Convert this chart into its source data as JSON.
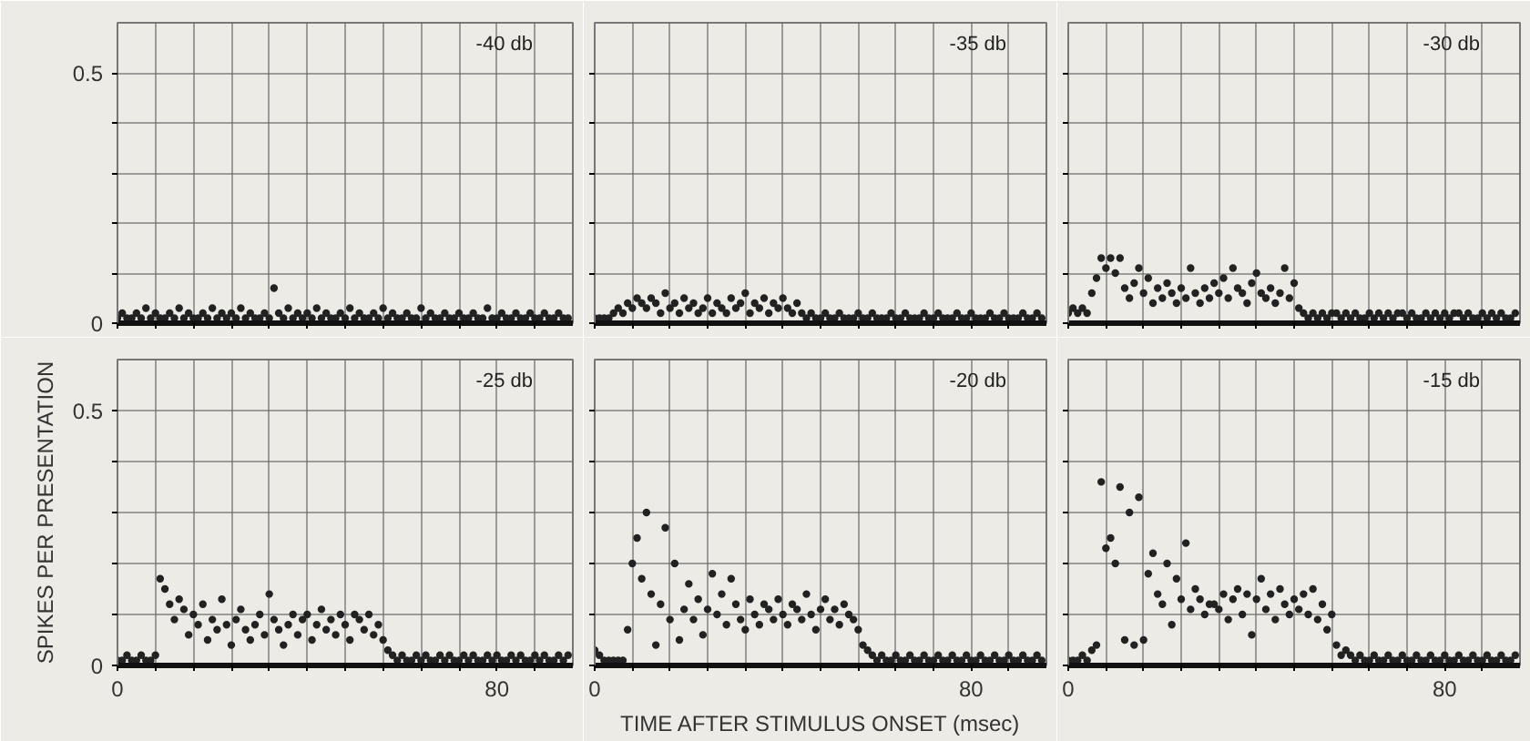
{
  "chart_data": [
    {
      "type": "scatter",
      "title": "-40 db",
      "xlim": [
        0,
        96
      ],
      "ylim": [
        0,
        0.6
      ],
      "xticks": [
        0,
        {
          "value": 8,
          "label": null
        },
        {
          "value": 16,
          "label": null
        },
        {
          "value": 24,
          "label": null
        },
        {
          "value": 32,
          "label": null
        },
        {
          "value": 40,
          "label": null
        },
        {
          "value": 48,
          "label": null
        },
        {
          "value": 56,
          "label": null
        },
        {
          "value": 64,
          "label": null
        },
        {
          "value": 72,
          "label": null
        },
        80,
        {
          "value": 88,
          "label": null
        }
      ],
      "yticks": [
        0,
        {
          "value": 0.1,
          "label": null
        },
        {
          "value": 0.2,
          "label": null
        },
        {
          "value": 0.3,
          "label": null
        },
        {
          "value": 0.4,
          "label": null
        },
        0.5
      ],
      "grid": true,
      "tick_labels": "y",
      "marker": "circle",
      "color": "#222222",
      "x": [
        0,
        1,
        2,
        3,
        4,
        5,
        6,
        7,
        8,
        9,
        10,
        11,
        12,
        13,
        14,
        15,
        16,
        17,
        18,
        19,
        20,
        21,
        22,
        23,
        24,
        25,
        26,
        27,
        28,
        29,
        30,
        31,
        32,
        33,
        34,
        35,
        36,
        37,
        38,
        39,
        40,
        41,
        42,
        43,
        44,
        45,
        46,
        47,
        48,
        49,
        50,
        51,
        52,
        53,
        54,
        55,
        56,
        57,
        58,
        59,
        60,
        61,
        62,
        63,
        64,
        65,
        66,
        67,
        68,
        69,
        70,
        71,
        72,
        73,
        74,
        75,
        76,
        77,
        78,
        79,
        80,
        81,
        82,
        83,
        84,
        85,
        86,
        87,
        88,
        89,
        90,
        91,
        92,
        93,
        94,
        95
      ],
      "values": [
        0.01,
        0.02,
        0.01,
        0.01,
        0.02,
        0.01,
        0.03,
        0.01,
        0.02,
        0.01,
        0.01,
        0.02,
        0.01,
        0.03,
        0.01,
        0.02,
        0.01,
        0.01,
        0.02,
        0.01,
        0.03,
        0.01,
        0.02,
        0.01,
        0.02,
        0.01,
        0.03,
        0.01,
        0.02,
        0.01,
        0.01,
        0.02,
        0.01,
        0.07,
        0.02,
        0.01,
        0.03,
        0.01,
        0.02,
        0.01,
        0.02,
        0.01,
        0.03,
        0.01,
        0.02,
        0.01,
        0.01,
        0.02,
        0.01,
        0.03,
        0.01,
        0.02,
        0.01,
        0.01,
        0.02,
        0.01,
        0.03,
        0.01,
        0.02,
        0.01,
        0.01,
        0.02,
        0.01,
        0.01,
        0.03,
        0.01,
        0.02,
        0.01,
        0.01,
        0.02,
        0.01,
        0.01,
        0.02,
        0.01,
        0.01,
        0.02,
        0.01,
        0.01,
        0.03,
        0.01,
        0.01,
        0.02,
        0.01,
        0.01,
        0.02,
        0.01,
        0.01,
        0.02,
        0.01,
        0.01,
        0.02,
        0.01,
        0.01,
        0.02,
        0.01,
        0.01
      ]
    },
    {
      "type": "scatter",
      "title": "-35 db",
      "xlim": [
        0,
        96
      ],
      "ylim": [
        0,
        0.6
      ],
      "xticks": [
        0,
        {
          "value": 8,
          "label": null
        },
        {
          "value": 16,
          "label": null
        },
        {
          "value": 24,
          "label": null
        },
        {
          "value": 32,
          "label": null
        },
        {
          "value": 40,
          "label": null
        },
        {
          "value": 48,
          "label": null
        },
        {
          "value": 56,
          "label": null
        },
        {
          "value": 64,
          "label": null
        },
        {
          "value": 72,
          "label": null
        },
        80,
        {
          "value": 88,
          "label": null
        }
      ],
      "yticks": [
        0,
        {
          "value": 0.1,
          "label": null
        },
        {
          "value": 0.2,
          "label": null
        },
        {
          "value": 0.3,
          "label": null
        },
        {
          "value": 0.4,
          "label": null
        },
        0.5
      ],
      "grid": true,
      "tick_labels": false,
      "marker": "circle",
      "color": "#222222",
      "x": [
        0,
        1,
        2,
        3,
        4,
        5,
        6,
        7,
        8,
        9,
        10,
        11,
        12,
        13,
        14,
        15,
        16,
        17,
        18,
        19,
        20,
        21,
        22,
        23,
        24,
        25,
        26,
        27,
        28,
        29,
        30,
        31,
        32,
        33,
        34,
        35,
        36,
        37,
        38,
        39,
        40,
        41,
        42,
        43,
        44,
        45,
        46,
        47,
        48,
        49,
        50,
        51,
        52,
        53,
        54,
        55,
        56,
        57,
        58,
        59,
        60,
        61,
        62,
        63,
        64,
        65,
        66,
        67,
        68,
        69,
        70,
        71,
        72,
        73,
        74,
        75,
        76,
        77,
        78,
        79,
        80,
        81,
        82,
        83,
        84,
        85,
        86,
        87,
        88,
        89,
        90,
        91,
        92,
        93,
        94,
        95
      ],
      "values": [
        0.01,
        0.01,
        0.01,
        0.01,
        0.02,
        0.03,
        0.02,
        0.04,
        0.03,
        0.05,
        0.04,
        0.03,
        0.05,
        0.04,
        0.02,
        0.06,
        0.03,
        0.04,
        0.02,
        0.05,
        0.03,
        0.04,
        0.02,
        0.03,
        0.05,
        0.02,
        0.04,
        0.03,
        0.02,
        0.05,
        0.03,
        0.04,
        0.06,
        0.02,
        0.04,
        0.03,
        0.05,
        0.02,
        0.04,
        0.03,
        0.05,
        0.03,
        0.02,
        0.04,
        0.02,
        0.01,
        0.02,
        0.01,
        0.01,
        0.02,
        0.01,
        0.01,
        0.02,
        0.01,
        0.01,
        0.01,
        0.02,
        0.01,
        0.01,
        0.02,
        0.01,
        0.01,
        0.01,
        0.02,
        0.01,
        0.01,
        0.02,
        0.01,
        0.01,
        0.01,
        0.02,
        0.01,
        0.01,
        0.02,
        0.01,
        0.01,
        0.01,
        0.02,
        0.01,
        0.01,
        0.02,
        0.01,
        0.01,
        0.01,
        0.02,
        0.01,
        0.01,
        0.02,
        0.01,
        0.01,
        0.01,
        0.02,
        0.01,
        0.01,
        0.02,
        0.01
      ]
    },
    {
      "type": "scatter",
      "title": "-30 db",
      "xlim": [
        0,
        96
      ],
      "ylim": [
        0,
        0.6
      ],
      "xticks": [
        0,
        {
          "value": 8,
          "label": null
        },
        {
          "value": 16,
          "label": null
        },
        {
          "value": 24,
          "label": null
        },
        {
          "value": 32,
          "label": null
        },
        {
          "value": 40,
          "label": null
        },
        {
          "value": 48,
          "label": null
        },
        {
          "value": 56,
          "label": null
        },
        {
          "value": 64,
          "label": null
        },
        {
          "value": 72,
          "label": null
        },
        80,
        {
          "value": 88,
          "label": null
        }
      ],
      "yticks": [
        0,
        {
          "value": 0.1,
          "label": null
        },
        {
          "value": 0.2,
          "label": null
        },
        {
          "value": 0.3,
          "label": null
        },
        {
          "value": 0.4,
          "label": null
        },
        0.5
      ],
      "grid": true,
      "tick_labels": false,
      "marker": "circle",
      "color": "#222222",
      "x": [
        0,
        1,
        2,
        3,
        4,
        5,
        6,
        7,
        8,
        9,
        10,
        11,
        12,
        13,
        14,
        15,
        16,
        17,
        18,
        19,
        20,
        21,
        22,
        23,
        24,
        25,
        26,
        27,
        28,
        29,
        30,
        31,
        32,
        33,
        34,
        35,
        36,
        37,
        38,
        39,
        40,
        41,
        42,
        43,
        44,
        45,
        46,
        47,
        48,
        49,
        50,
        51,
        52,
        53,
        54,
        55,
        56,
        57,
        58,
        59,
        60,
        61,
        62,
        63,
        64,
        65,
        66,
        67,
        68,
        69,
        70,
        71,
        72,
        73,
        74,
        75,
        76,
        77,
        78,
        79,
        80,
        81,
        82,
        83,
        84,
        85,
        86,
        87,
        88,
        89,
        90,
        91,
        92,
        93,
        94,
        95
      ],
      "values": [
        0.02,
        0.03,
        0.02,
        0.03,
        0.02,
        0.06,
        0.09,
        0.13,
        0.11,
        0.13,
        0.1,
        0.13,
        0.07,
        0.05,
        0.08,
        0.11,
        0.06,
        0.09,
        0.04,
        0.07,
        0.05,
        0.08,
        0.06,
        0.04,
        0.07,
        0.05,
        0.11,
        0.06,
        0.04,
        0.07,
        0.05,
        0.08,
        0.06,
        0.09,
        0.05,
        0.11,
        0.07,
        0.06,
        0.04,
        0.08,
        0.1,
        0.06,
        0.05,
        0.07,
        0.04,
        0.06,
        0.11,
        0.05,
        0.08,
        0.03,
        0.02,
        0.01,
        0.02,
        0.01,
        0.02,
        0.01,
        0.02,
        0.02,
        0.01,
        0.02,
        0.01,
        0.02,
        0.01,
        0.01,
        0.02,
        0.01,
        0.02,
        0.01,
        0.02,
        0.01,
        0.02,
        0.02,
        0.01,
        0.02,
        0.01,
        0.01,
        0.02,
        0.01,
        0.02,
        0.01,
        0.02,
        0.01,
        0.02,
        0.02,
        0.01,
        0.02,
        0.01,
        0.01,
        0.02,
        0.01,
        0.02,
        0.01,
        0.02,
        0.01,
        0.01,
        0.02
      ]
    },
    {
      "type": "scatter",
      "title": "-25 db",
      "ylabel": "SPIKES PER PRESENTATION",
      "xlim": [
        0,
        96
      ],
      "ylim": [
        0,
        0.6
      ],
      "xticks": [
        0,
        {
          "value": 8,
          "label": null
        },
        {
          "value": 16,
          "label": null
        },
        {
          "value": 24,
          "label": null
        },
        {
          "value": 32,
          "label": null
        },
        {
          "value": 40,
          "label": null
        },
        {
          "value": 48,
          "label": null
        },
        {
          "value": 56,
          "label": null
        },
        {
          "value": 64,
          "label": null
        },
        {
          "value": 72,
          "label": null
        },
        80,
        {
          "value": 88,
          "label": null
        }
      ],
      "yticks": [
        0,
        {
          "value": 0.1,
          "label": null
        },
        {
          "value": 0.2,
          "label": null
        },
        {
          "value": 0.3,
          "label": null
        },
        {
          "value": 0.4,
          "label": null
        },
        0.5
      ],
      "grid": true,
      "marker": "circle",
      "color": "#222222",
      "x": [
        0,
        1,
        2,
        3,
        4,
        5,
        6,
        7,
        8,
        9,
        10,
        11,
        12,
        13,
        14,
        15,
        16,
        17,
        18,
        19,
        20,
        21,
        22,
        23,
        24,
        25,
        26,
        27,
        28,
        29,
        30,
        31,
        32,
        33,
        34,
        35,
        36,
        37,
        38,
        39,
        40,
        41,
        42,
        43,
        44,
        45,
        46,
        47,
        48,
        49,
        50,
        51,
        52,
        53,
        54,
        55,
        56,
        57,
        58,
        59,
        60,
        61,
        62,
        63,
        64,
        65,
        66,
        67,
        68,
        69,
        70,
        71,
        72,
        73,
        74,
        75,
        76,
        77,
        78,
        79,
        80,
        81,
        82,
        83,
        84,
        85,
        86,
        87,
        88,
        89,
        90,
        91,
        92,
        93,
        94,
        95
      ],
      "values": [
        0.01,
        0.01,
        0.02,
        0.01,
        0.01,
        0.02,
        0.01,
        0.01,
        0.02,
        0.17,
        0.15,
        0.12,
        0.09,
        0.13,
        0.11,
        0.06,
        0.1,
        0.08,
        0.12,
        0.05,
        0.09,
        0.07,
        0.13,
        0.08,
        0.04,
        0.09,
        0.11,
        0.07,
        0.05,
        0.08,
        0.1,
        0.06,
        0.14,
        0.09,
        0.07,
        0.04,
        0.08,
        0.1,
        0.06,
        0.09,
        0.1,
        0.05,
        0.08,
        0.11,
        0.07,
        0.09,
        0.06,
        0.1,
        0.08,
        0.05,
        0.1,
        0.09,
        0.07,
        0.1,
        0.06,
        0.08,
        0.05,
        0.03,
        0.02,
        0.01,
        0.02,
        0.01,
        0.01,
        0.02,
        0.01,
        0.02,
        0.01,
        0.01,
        0.02,
        0.01,
        0.02,
        0.01,
        0.01,
        0.02,
        0.01,
        0.02,
        0.01,
        0.01,
        0.02,
        0.01,
        0.02,
        0.01,
        0.01,
        0.02,
        0.01,
        0.02,
        0.01,
        0.01,
        0.02,
        0.01,
        0.02,
        0.01,
        0.01,
        0.02,
        0.01,
        0.02
      ]
    },
    {
      "type": "scatter",
      "title": "-20 db",
      "xlabel": "TIME AFTER STIMULUS ONSET (msec)",
      "xlim": [
        0,
        96
      ],
      "ylim": [
        0,
        0.6
      ],
      "xticks": [
        0,
        {
          "value": 8,
          "label": null
        },
        {
          "value": 16,
          "label": null
        },
        {
          "value": 24,
          "label": null
        },
        {
          "value": 32,
          "label": null
        },
        {
          "value": 40,
          "label": null
        },
        {
          "value": 48,
          "label": null
        },
        {
          "value": 56,
          "label": null
        },
        {
          "value": 64,
          "label": null
        },
        {
          "value": 72,
          "label": null
        },
        80,
        {
          "value": 88,
          "label": null
        }
      ],
      "yticks": [
        0,
        {
          "value": 0.1,
          "label": null
        },
        {
          "value": 0.2,
          "label": null
        },
        {
          "value": 0.3,
          "label": null
        },
        {
          "value": 0.4,
          "label": null
        },
        0.5
      ],
      "grid": true,
      "tick_labels": "x",
      "marker": "circle",
      "color": "#222222",
      "x": [
        0,
        1,
        2,
        3,
        4,
        5,
        6,
        7,
        8,
        9,
        10,
        11,
        12,
        13,
        14,
        15,
        16,
        17,
        18,
        19,
        20,
        21,
        22,
        23,
        24,
        25,
        26,
        27,
        28,
        29,
        30,
        31,
        32,
        33,
        34,
        35,
        36,
        37,
        38,
        39,
        40,
        41,
        42,
        43,
        44,
        45,
        46,
        47,
        48,
        49,
        50,
        51,
        52,
        53,
        54,
        55,
        56,
        57,
        58,
        59,
        60,
        61,
        62,
        63,
        64,
        65,
        66,
        67,
        68,
        69,
        70,
        71,
        72,
        73,
        74,
        75,
        76,
        77,
        78,
        79,
        80,
        81,
        82,
        83,
        84,
        85,
        86,
        87,
        88,
        89,
        90,
        91,
        92,
        93,
        94,
        95
      ],
      "values": [
        0.03,
        0.02,
        0.01,
        0.01,
        0.01,
        0.01,
        0.01,
        0.07,
        0.2,
        0.25,
        0.17,
        0.3,
        0.14,
        0.04,
        0.12,
        0.27,
        0.09,
        0.2,
        0.05,
        0.11,
        0.16,
        0.09,
        0.13,
        0.06,
        0.11,
        0.18,
        0.1,
        0.14,
        0.08,
        0.17,
        0.12,
        0.09,
        0.07,
        0.13,
        0.1,
        0.08,
        0.12,
        0.11,
        0.09,
        0.13,
        0.1,
        0.08,
        0.12,
        0.11,
        0.09,
        0.14,
        0.1,
        0.07,
        0.11,
        0.13,
        0.09,
        0.11,
        0.08,
        0.12,
        0.1,
        0.09,
        0.07,
        0.04,
        0.03,
        0.02,
        0.01,
        0.02,
        0.01,
        0.01,
        0.02,
        0.01,
        0.01,
        0.02,
        0.01,
        0.01,
        0.02,
        0.01,
        0.01,
        0.02,
        0.01,
        0.01,
        0.02,
        0.01,
        0.01,
        0.02,
        0.01,
        0.01,
        0.02,
        0.01,
        0.01,
        0.02,
        0.01,
        0.01,
        0.02,
        0.01,
        0.01,
        0.02,
        0.01,
        0.01,
        0.02,
        0.01
      ]
    },
    {
      "type": "scatter",
      "title": "-15 db",
      "xlim": [
        0,
        96
      ],
      "ylim": [
        0,
        0.6
      ],
      "xticks": [
        0,
        {
          "value": 8,
          "label": null
        },
        {
          "value": 16,
          "label": null
        },
        {
          "value": 24,
          "label": null
        },
        {
          "value": 32,
          "label": null
        },
        {
          "value": 40,
          "label": null
        },
        {
          "value": 48,
          "label": null
        },
        {
          "value": 56,
          "label": null
        },
        {
          "value": 64,
          "label": null
        },
        {
          "value": 72,
          "label": null
        },
        80,
        {
          "value": 88,
          "label": null
        }
      ],
      "yticks": [
        0,
        {
          "value": 0.1,
          "label": null
        },
        {
          "value": 0.2,
          "label": null
        },
        {
          "value": 0.3,
          "label": null
        },
        {
          "value": 0.4,
          "label": null
        },
        0.5
      ],
      "grid": true,
      "tick_labels": "x",
      "marker": "circle",
      "color": "#222222",
      "x": [
        0,
        1,
        2,
        3,
        4,
        5,
        6,
        7,
        8,
        9,
        10,
        11,
        12,
        13,
        14,
        15,
        16,
        17,
        18,
        19,
        20,
        21,
        22,
        23,
        24,
        25,
        26,
        27,
        28,
        29,
        30,
        31,
        32,
        33,
        34,
        35,
        36,
        37,
        38,
        39,
        40,
        41,
        42,
        43,
        44,
        45,
        46,
        47,
        48,
        49,
        50,
        51,
        52,
        53,
        54,
        55,
        56,
        57,
        58,
        59,
        60,
        61,
        62,
        63,
        64,
        65,
        66,
        67,
        68,
        69,
        70,
        71,
        72,
        73,
        74,
        75,
        76,
        77,
        78,
        79,
        80,
        81,
        82,
        83,
        84,
        85,
        86,
        87,
        88,
        89,
        90,
        91,
        92,
        93,
        94,
        95
      ],
      "values": [
        0.01,
        0.01,
        0.01,
        0.02,
        0.01,
        0.03,
        0.04,
        0.36,
        0.23,
        0.25,
        0.2,
        0.35,
        0.05,
        0.3,
        0.04,
        0.33,
        0.05,
        0.18,
        0.22,
        0.14,
        0.12,
        0.2,
        0.08,
        0.17,
        0.13,
        0.24,
        0.11,
        0.15,
        0.13,
        0.1,
        0.12,
        0.12,
        0.11,
        0.14,
        0.09,
        0.13,
        0.15,
        0.1,
        0.14,
        0.06,
        0.13,
        0.17,
        0.11,
        0.14,
        0.09,
        0.15,
        0.12,
        0.1,
        0.13,
        0.11,
        0.14,
        0.1,
        0.15,
        0.09,
        0.12,
        0.07,
        0.1,
        0.04,
        0.02,
        0.03,
        0.02,
        0.01,
        0.02,
        0.01,
        0.01,
        0.02,
        0.01,
        0.01,
        0.02,
        0.01,
        0.01,
        0.02,
        0.01,
        0.01,
        0.02,
        0.01,
        0.01,
        0.02,
        0.01,
        0.01,
        0.02,
        0.01,
        0.01,
        0.02,
        0.01,
        0.01,
        0.02,
        0.01,
        0.01,
        0.02,
        0.01,
        0.01,
        0.02,
        0.01,
        0.01,
        0.02
      ]
    }
  ]
}
